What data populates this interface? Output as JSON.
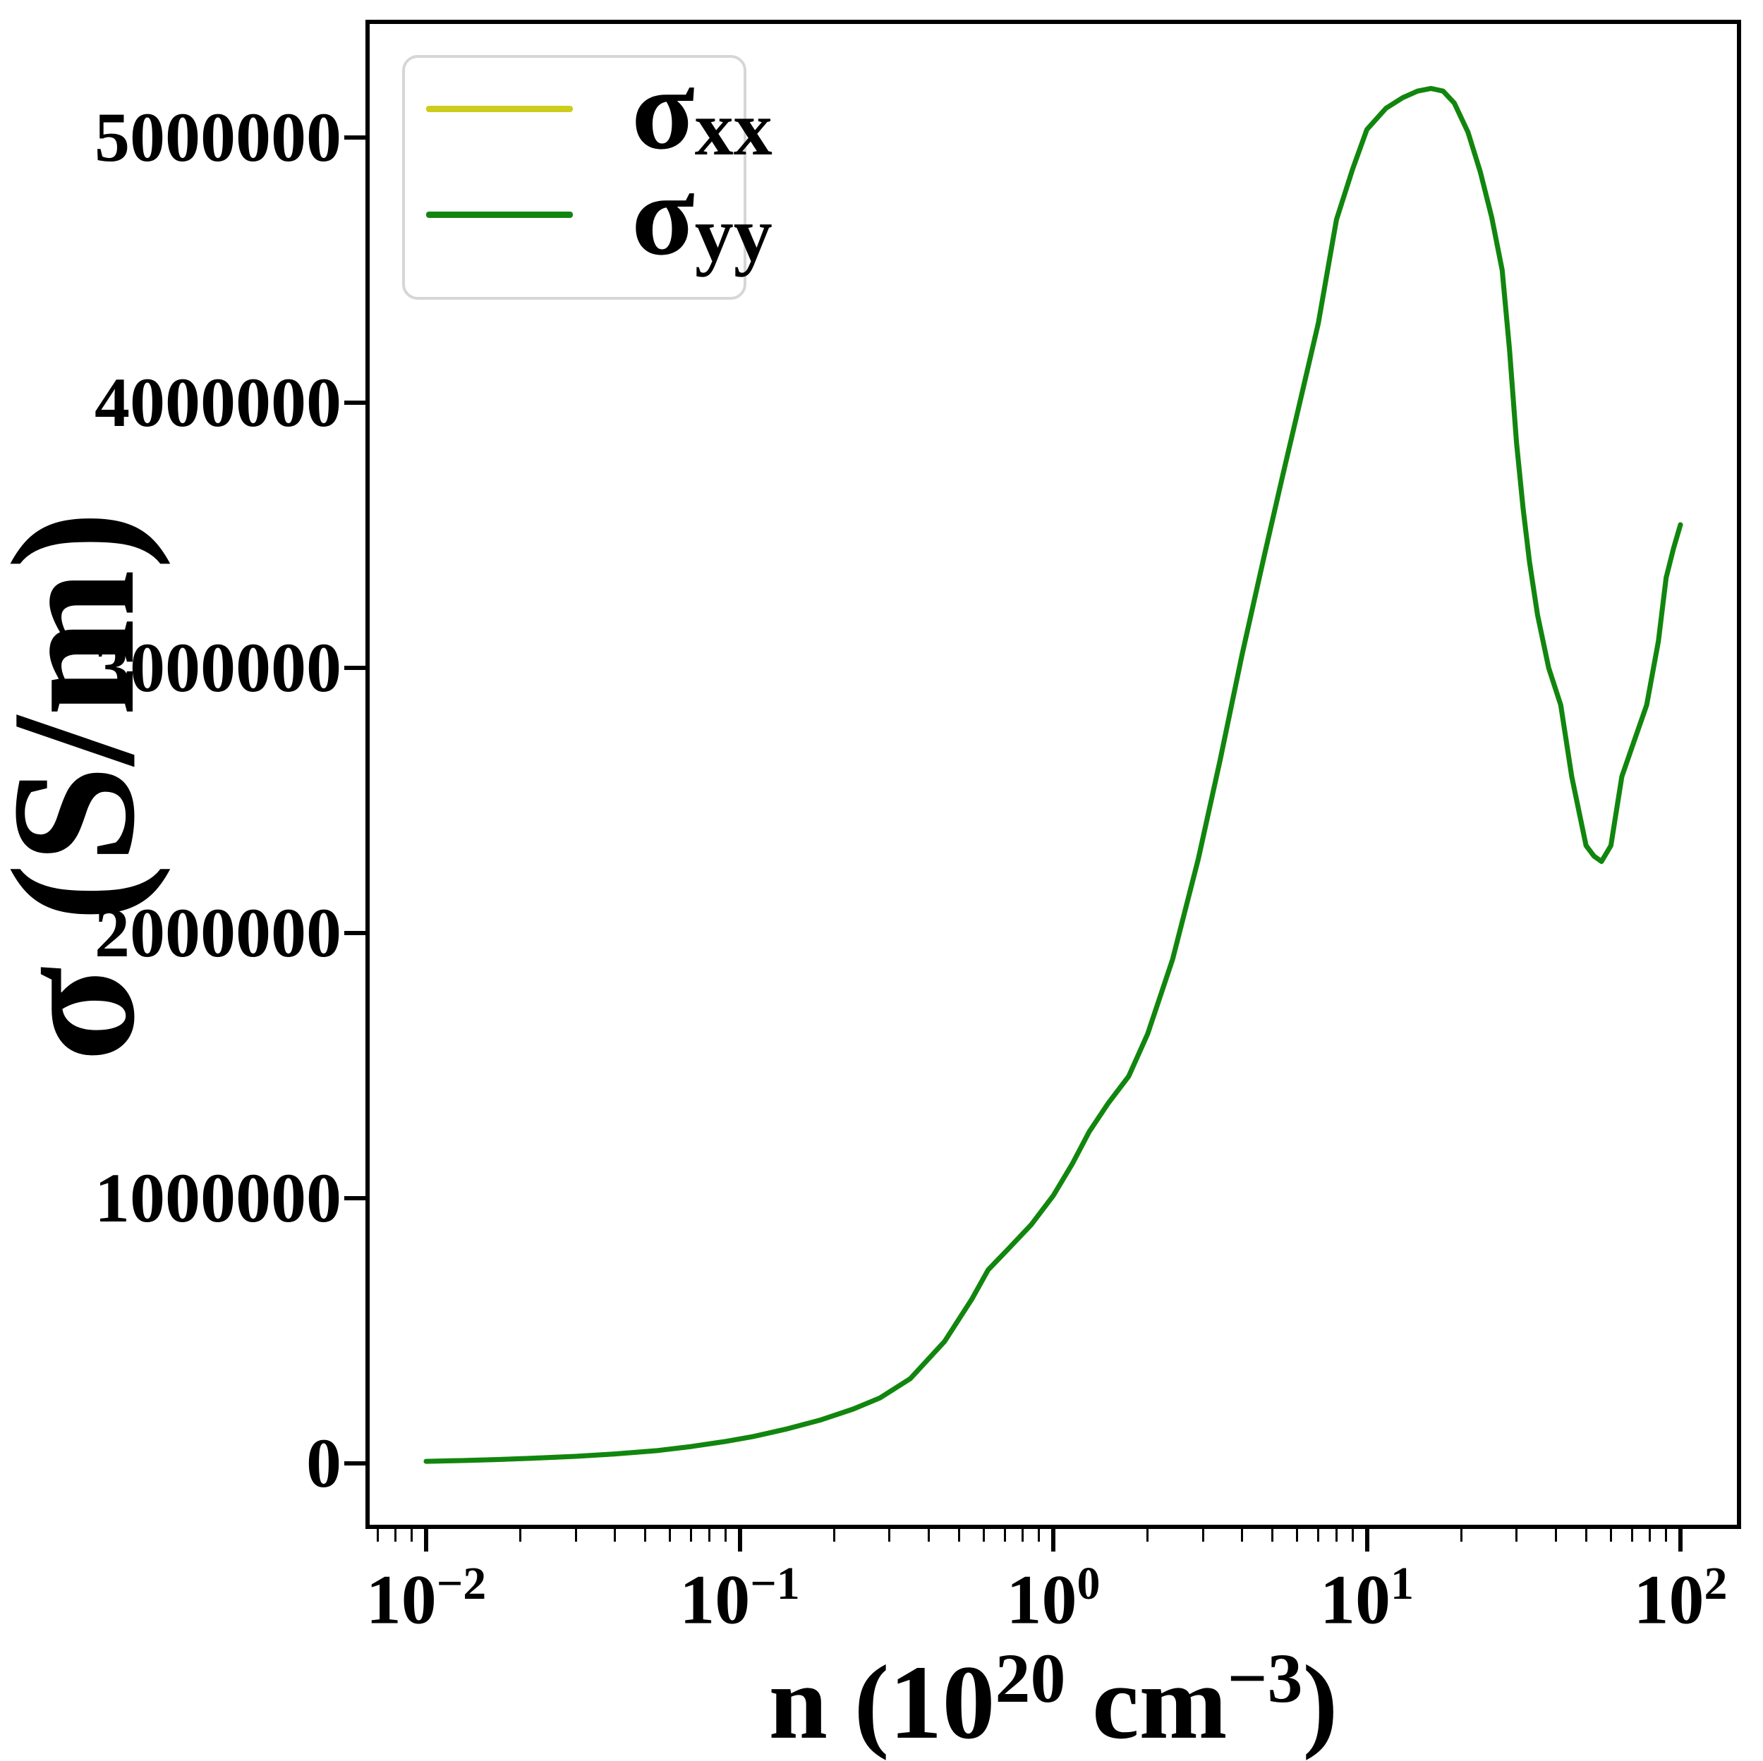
{
  "figure": {
    "background": "#ffffff"
  },
  "chart_data": {
    "type": "line",
    "title": "",
    "x_scale": "log",
    "grid": false,
    "xlabel": {
      "pre": "n (10",
      "sup1": "20",
      "mid": " cm",
      "sup2": "−3",
      "post": ")"
    },
    "ylabel": "σ (S/m)",
    "xlim": [
      0.006405,
      156.1
    ],
    "ylim": [
      -247000,
      5444000
    ],
    "x_ticks": [
      {
        "value": 0.01,
        "base": "10",
        "exp": "−2"
      },
      {
        "value": 0.1,
        "base": "10",
        "exp": "−1"
      },
      {
        "value": 1,
        "base": "10",
        "exp": "0"
      },
      {
        "value": 10,
        "base": "10",
        "exp": "1"
      },
      {
        "value": 100,
        "base": "10",
        "exp": "2"
      }
    ],
    "y_ticks": [
      {
        "value": 5000000,
        "label": "5000000"
      },
      {
        "value": 4000000,
        "label": "4000000"
      },
      {
        "value": 3000000,
        "label": "3000000"
      },
      {
        "value": 2000000,
        "label": "2000000"
      },
      {
        "value": 1000000,
        "label": "1000000"
      },
      {
        "value": 0,
        "label": "0"
      }
    ],
    "legend": {
      "position": "upper-left",
      "border_color": "#d6d6d6",
      "entries": [
        {
          "name": "sigma_xx",
          "label_main": "σ",
          "label_sub": "xx",
          "color": "#cdcd1c"
        },
        {
          "name": "sigma_yy",
          "label_main": "σ",
          "label_sub": "yy",
          "color": "#108610"
        }
      ]
    },
    "series": [
      {
        "name": "sigma_xx",
        "color": "#cdcd1c",
        "points": [
          [
            0.01,
            8000
          ],
          [
            0.013,
            11000
          ],
          [
            0.017,
            15000
          ],
          [
            0.022,
            20000
          ],
          [
            0.03,
            27000
          ],
          [
            0.04,
            36000
          ],
          [
            0.055,
            49000
          ],
          [
            0.07,
            64000
          ],
          [
            0.09,
            83000
          ],
          [
            0.11,
            101000
          ],
          [
            0.14,
            129000
          ],
          [
            0.18,
            163000
          ],
          [
            0.23,
            205000
          ],
          [
            0.28,
            247000
          ],
          [
            0.35,
            320000
          ],
          [
            0.45,
            460000
          ],
          [
            0.55,
            620000
          ],
          [
            0.62,
            730000
          ],
          [
            0.72,
            810000
          ],
          [
            0.85,
            900000
          ],
          [
            1.0,
            1010000
          ],
          [
            1.15,
            1130000
          ],
          [
            1.3,
            1250000
          ],
          [
            1.5,
            1360000
          ],
          [
            1.74,
            1460000
          ],
          [
            2.0,
            1620000
          ],
          [
            2.4,
            1900000
          ],
          [
            2.9,
            2280000
          ],
          [
            3.4,
            2650000
          ],
          [
            4.0,
            3050000
          ],
          [
            4.7,
            3420000
          ],
          [
            5.4,
            3730000
          ],
          [
            6.0,
            3960000
          ],
          [
            7.0,
            4300000
          ],
          [
            8.0,
            4690000
          ],
          [
            9.0,
            4880000
          ],
          [
            10.0,
            5030000
          ],
          [
            11.5,
            5110000
          ],
          [
            13.0,
            5150000
          ],
          [
            14.5,
            5175000
          ],
          [
            16.0,
            5185000
          ],
          [
            17.5,
            5175000
          ],
          [
            19.0,
            5130000
          ],
          [
            21.0,
            5020000
          ],
          [
            23.0,
            4870000
          ],
          [
            25.0,
            4700000
          ],
          [
            27.0,
            4500000
          ],
          [
            28.5,
            4200000
          ],
          [
            30.0,
            3850000
          ],
          [
            31.5,
            3600000
          ],
          [
            33.0,
            3400000
          ],
          [
            35.0,
            3200000
          ],
          [
            38.0,
            3000000
          ],
          [
            41.5,
            2860000
          ],
          [
            45.0,
            2590000
          ],
          [
            50.0,
            2330000
          ],
          [
            53.0,
            2290000
          ],
          [
            56.0,
            2270000
          ],
          [
            60.0,
            2330000
          ],
          [
            65.0,
            2590000
          ],
          [
            70.0,
            2700000
          ],
          [
            78.0,
            2860000
          ],
          [
            85.0,
            3100000
          ],
          [
            90.0,
            3340000
          ],
          [
            95.0,
            3450000
          ],
          [
            100.0,
            3540000
          ]
        ]
      },
      {
        "name": "sigma_yy",
        "color": "#108610",
        "points": [
          [
            0.01,
            8000
          ],
          [
            0.013,
            11000
          ],
          [
            0.017,
            15000
          ],
          [
            0.022,
            20000
          ],
          [
            0.03,
            27000
          ],
          [
            0.04,
            36000
          ],
          [
            0.055,
            49000
          ],
          [
            0.07,
            64000
          ],
          [
            0.09,
            83000
          ],
          [
            0.11,
            101000
          ],
          [
            0.14,
            129000
          ],
          [
            0.18,
            163000
          ],
          [
            0.23,
            205000
          ],
          [
            0.28,
            247000
          ],
          [
            0.35,
            320000
          ],
          [
            0.45,
            460000
          ],
          [
            0.55,
            620000
          ],
          [
            0.62,
            730000
          ],
          [
            0.72,
            810000
          ],
          [
            0.85,
            900000
          ],
          [
            1.0,
            1010000
          ],
          [
            1.15,
            1130000
          ],
          [
            1.3,
            1250000
          ],
          [
            1.5,
            1360000
          ],
          [
            1.74,
            1460000
          ],
          [
            2.0,
            1620000
          ],
          [
            2.4,
            1900000
          ],
          [
            2.9,
            2280000
          ],
          [
            3.4,
            2650000
          ],
          [
            4.0,
            3050000
          ],
          [
            4.7,
            3420000
          ],
          [
            5.4,
            3730000
          ],
          [
            6.0,
            3960000
          ],
          [
            7.0,
            4300000
          ],
          [
            8.0,
            4690000
          ],
          [
            9.0,
            4880000
          ],
          [
            10.0,
            5030000
          ],
          [
            11.5,
            5110000
          ],
          [
            13.0,
            5150000
          ],
          [
            14.5,
            5175000
          ],
          [
            16.0,
            5185000
          ],
          [
            17.5,
            5175000
          ],
          [
            19.0,
            5130000
          ],
          [
            21.0,
            5020000
          ],
          [
            23.0,
            4870000
          ],
          [
            25.0,
            4700000
          ],
          [
            27.0,
            4500000
          ],
          [
            28.5,
            4200000
          ],
          [
            30.0,
            3850000
          ],
          [
            31.5,
            3600000
          ],
          [
            33.0,
            3400000
          ],
          [
            35.0,
            3200000
          ],
          [
            38.0,
            3000000
          ],
          [
            41.5,
            2860000
          ],
          [
            45.0,
            2590000
          ],
          [
            50.0,
            2330000
          ],
          [
            53.0,
            2290000
          ],
          [
            56.0,
            2270000
          ],
          [
            60.0,
            2330000
          ],
          [
            65.0,
            2590000
          ],
          [
            70.0,
            2700000
          ],
          [
            78.0,
            2860000
          ],
          [
            85.0,
            3100000
          ],
          [
            90.0,
            3340000
          ],
          [
            95.0,
            3450000
          ],
          [
            100.0,
            3540000
          ]
        ]
      }
    ]
  }
}
